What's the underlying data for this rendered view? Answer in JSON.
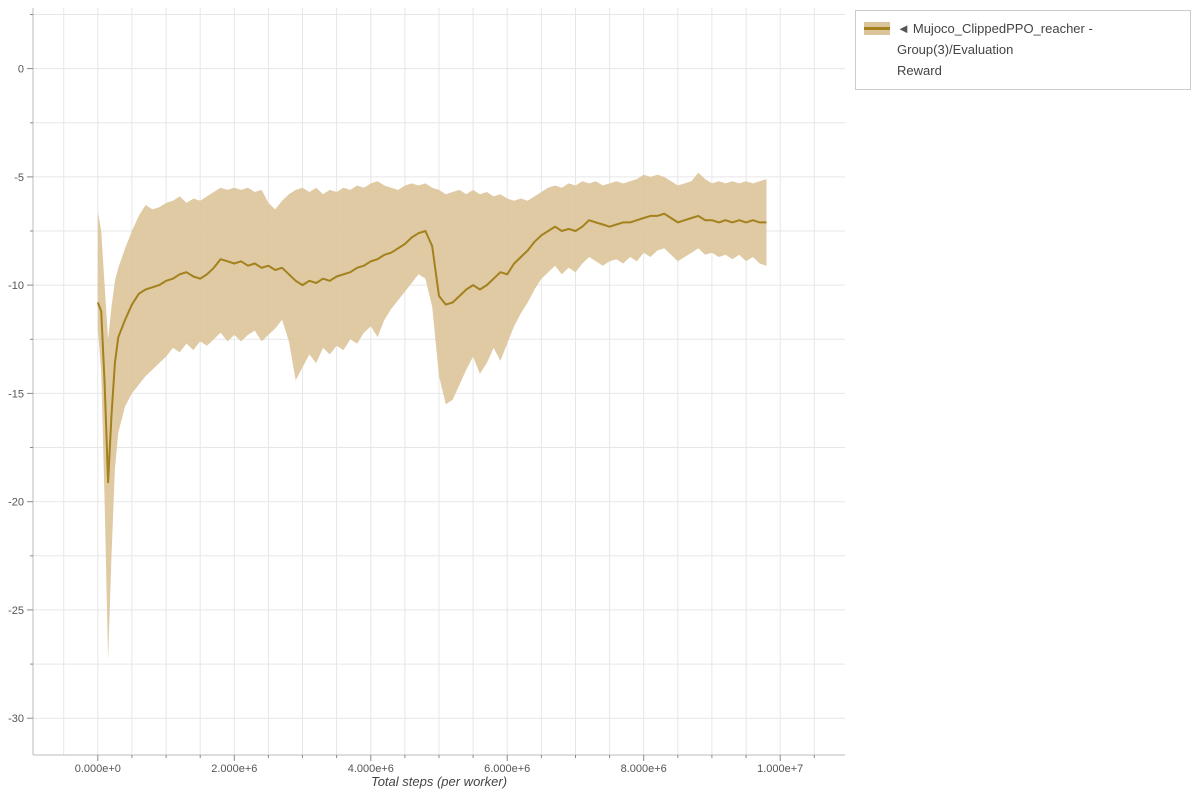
{
  "page": {
    "background": "#ffffff"
  },
  "legend": {
    "marker": "◄",
    "line1": "Mujoco_ClippedPPO_reacher - Group(3)/Evaluation",
    "line2": "Reward"
  },
  "colors": {
    "line": "#a3811c",
    "band": "#dcc49a",
    "grid": "#e7e7e7",
    "axis": "#bbbbbb",
    "tick": "#888888",
    "tick_label": "#555555",
    "axis_label": "#444444"
  },
  "chart_data": {
    "type": "line",
    "title": "",
    "xlabel": "Total steps (per worker)",
    "ylabel": "",
    "legend_entry": "Mujoco_ClippedPPO_reacher - Group(3)/Evaluation Reward",
    "legend_position": "top-right-outside",
    "grid_on": true,
    "x_unit": "total steps, stored in millions (1e6)",
    "x_tick_values_e6": [
      0,
      2,
      4,
      6,
      8,
      10
    ],
    "x_tick_labels": [
      "0.000e+0",
      "2.000e+6",
      "4.000e+6",
      "6.000e+6",
      "8.000e+6",
      "1.000e+7"
    ],
    "y_tick_values": [
      0,
      -5,
      -10,
      -15,
      -20,
      -25,
      -30
    ],
    "x_range_e6": [
      -0.95,
      10.95
    ],
    "y_range": [
      -31.7,
      2.8
    ],
    "grid": {
      "x_minor_step_e6": 0.5,
      "y_minor_step": 2.5,
      "color": "#e7e7e7"
    },
    "series": [
      {
        "name": "Mujoco_ClippedPPO_reacher - Group(3)/Evaluation Reward",
        "line_color": "#a3811c",
        "band_color": "#dcc49a",
        "points_format": [
          "x_millions",
          "band_lower",
          "mean",
          "band_upper"
        ],
        "points": [
          [
            0.0,
            -12.0,
            -10.8,
            -6.6
          ],
          [
            0.05,
            -14.0,
            -11.2,
            -7.5
          ],
          [
            0.1,
            -20.0,
            -14.5,
            -10.0
          ],
          [
            0.15,
            -27.3,
            -19.1,
            -12.5
          ],
          [
            0.2,
            -22.5,
            -16.0,
            -11.0
          ],
          [
            0.25,
            -18.5,
            -13.6,
            -9.8
          ],
          [
            0.3,
            -16.8,
            -12.4,
            -9.2
          ],
          [
            0.4,
            -15.6,
            -11.6,
            -8.3
          ],
          [
            0.5,
            -15.0,
            -10.9,
            -7.5
          ],
          [
            0.6,
            -14.6,
            -10.4,
            -6.8
          ],
          [
            0.7,
            -14.2,
            -10.2,
            -6.3
          ],
          [
            0.8,
            -13.9,
            -10.1,
            -6.5
          ],
          [
            0.9,
            -13.6,
            -10.0,
            -6.4
          ],
          [
            1.0,
            -13.3,
            -9.8,
            -6.2
          ],
          [
            1.1,
            -12.9,
            -9.7,
            -6.1
          ],
          [
            1.2,
            -13.1,
            -9.5,
            -5.9
          ],
          [
            1.3,
            -12.7,
            -9.4,
            -6.2
          ],
          [
            1.4,
            -13.0,
            -9.6,
            -6.0
          ],
          [
            1.5,
            -12.6,
            -9.7,
            -6.1
          ],
          [
            1.6,
            -12.8,
            -9.5,
            -5.9
          ],
          [
            1.7,
            -12.5,
            -9.2,
            -5.7
          ],
          [
            1.8,
            -12.2,
            -8.8,
            -5.5
          ],
          [
            1.9,
            -12.6,
            -8.9,
            -5.6
          ],
          [
            2.0,
            -12.3,
            -9.0,
            -5.5
          ],
          [
            2.1,
            -12.6,
            -8.9,
            -5.6
          ],
          [
            2.2,
            -12.3,
            -9.1,
            -5.5
          ],
          [
            2.3,
            -12.1,
            -9.0,
            -5.7
          ],
          [
            2.4,
            -12.6,
            -9.2,
            -5.6
          ],
          [
            2.5,
            -12.3,
            -9.1,
            -6.2
          ],
          [
            2.6,
            -12.0,
            -9.3,
            -6.5
          ],
          [
            2.7,
            -11.6,
            -9.2,
            -6.1
          ],
          [
            2.8,
            -12.6,
            -9.5,
            -5.8
          ],
          [
            2.9,
            -14.4,
            -9.8,
            -5.6
          ],
          [
            3.0,
            -13.8,
            -10.0,
            -5.5
          ],
          [
            3.1,
            -13.2,
            -9.8,
            -5.7
          ],
          [
            3.2,
            -13.6,
            -9.9,
            -5.5
          ],
          [
            3.3,
            -12.9,
            -9.7,
            -5.8
          ],
          [
            3.4,
            -13.2,
            -9.8,
            -5.6
          ],
          [
            3.5,
            -12.8,
            -9.6,
            -5.7
          ],
          [
            3.6,
            -13.0,
            -9.5,
            -5.5
          ],
          [
            3.7,
            -12.5,
            -9.4,
            -5.6
          ],
          [
            3.8,
            -12.7,
            -9.2,
            -5.4
          ],
          [
            3.9,
            -12.2,
            -9.1,
            -5.5
          ],
          [
            4.0,
            -11.9,
            -8.9,
            -5.3
          ],
          [
            4.1,
            -12.4,
            -8.8,
            -5.2
          ],
          [
            4.2,
            -11.6,
            -8.6,
            -5.4
          ],
          [
            4.3,
            -11.1,
            -8.5,
            -5.5
          ],
          [
            4.4,
            -10.7,
            -8.3,
            -5.6
          ],
          [
            4.5,
            -10.3,
            -8.1,
            -5.4
          ],
          [
            4.6,
            -9.9,
            -7.8,
            -5.3
          ],
          [
            4.7,
            -9.5,
            -7.6,
            -5.4
          ],
          [
            4.8,
            -9.7,
            -7.5,
            -5.3
          ],
          [
            4.9,
            -11.0,
            -8.2,
            -5.5
          ],
          [
            5.0,
            -14.2,
            -10.5,
            -5.6
          ],
          [
            5.1,
            -15.5,
            -10.9,
            -5.8
          ],
          [
            5.2,
            -15.3,
            -10.8,
            -5.7
          ],
          [
            5.3,
            -14.6,
            -10.5,
            -5.6
          ],
          [
            5.4,
            -13.9,
            -10.2,
            -5.8
          ],
          [
            5.5,
            -13.3,
            -10.0,
            -5.6
          ],
          [
            5.6,
            -14.1,
            -10.2,
            -5.8
          ],
          [
            5.7,
            -13.6,
            -10.0,
            -5.7
          ],
          [
            5.8,
            -12.9,
            -9.7,
            -5.9
          ],
          [
            5.9,
            -13.5,
            -9.4,
            -5.8
          ],
          [
            6.0,
            -12.7,
            -9.5,
            -6.0
          ],
          [
            6.1,
            -11.9,
            -9.0,
            -6.1
          ],
          [
            6.2,
            -11.3,
            -8.7,
            -6.0
          ],
          [
            6.3,
            -10.8,
            -8.4,
            -6.1
          ],
          [
            6.4,
            -10.2,
            -8.0,
            -5.9
          ],
          [
            6.5,
            -9.7,
            -7.7,
            -5.7
          ],
          [
            6.6,
            -9.4,
            -7.5,
            -5.5
          ],
          [
            6.7,
            -9.1,
            -7.3,
            -5.4
          ],
          [
            6.8,
            -9.5,
            -7.5,
            -5.5
          ],
          [
            6.9,
            -9.2,
            -7.4,
            -5.3
          ],
          [
            7.0,
            -9.4,
            -7.5,
            -5.4
          ],
          [
            7.1,
            -9.0,
            -7.3,
            -5.2
          ],
          [
            7.2,
            -8.7,
            -7.0,
            -5.3
          ],
          [
            7.3,
            -8.9,
            -7.1,
            -5.2
          ],
          [
            7.4,
            -9.1,
            -7.2,
            -5.4
          ],
          [
            7.5,
            -8.9,
            -7.3,
            -5.3
          ],
          [
            7.6,
            -8.8,
            -7.2,
            -5.2
          ],
          [
            7.7,
            -9.0,
            -7.1,
            -5.3
          ],
          [
            7.8,
            -8.7,
            -7.1,
            -5.2
          ],
          [
            7.9,
            -8.9,
            -7.0,
            -5.1
          ],
          [
            8.0,
            -8.5,
            -6.9,
            -4.9
          ],
          [
            8.1,
            -8.7,
            -6.8,
            -5.0
          ],
          [
            8.2,
            -8.4,
            -6.8,
            -4.9
          ],
          [
            8.3,
            -8.3,
            -6.7,
            -5.0
          ],
          [
            8.4,
            -8.6,
            -6.9,
            -5.2
          ],
          [
            8.5,
            -8.9,
            -7.1,
            -5.4
          ],
          [
            8.6,
            -8.7,
            -7.0,
            -5.3
          ],
          [
            8.7,
            -8.5,
            -6.9,
            -5.2
          ],
          [
            8.8,
            -8.3,
            -6.8,
            -4.8
          ],
          [
            8.9,
            -8.6,
            -7.0,
            -5.1
          ],
          [
            9.0,
            -8.5,
            -7.0,
            -5.3
          ],
          [
            9.1,
            -8.7,
            -7.1,
            -5.2
          ],
          [
            9.2,
            -8.6,
            -7.0,
            -5.3
          ],
          [
            9.3,
            -8.8,
            -7.1,
            -5.2
          ],
          [
            9.4,
            -8.6,
            -7.0,
            -5.3
          ],
          [
            9.5,
            -8.9,
            -7.1,
            -5.2
          ],
          [
            9.6,
            -8.7,
            -7.0,
            -5.3
          ],
          [
            9.7,
            -9.0,
            -7.1,
            -5.2
          ],
          [
            9.8,
            -9.1,
            -7.1,
            -5.1
          ]
        ]
      }
    ]
  }
}
